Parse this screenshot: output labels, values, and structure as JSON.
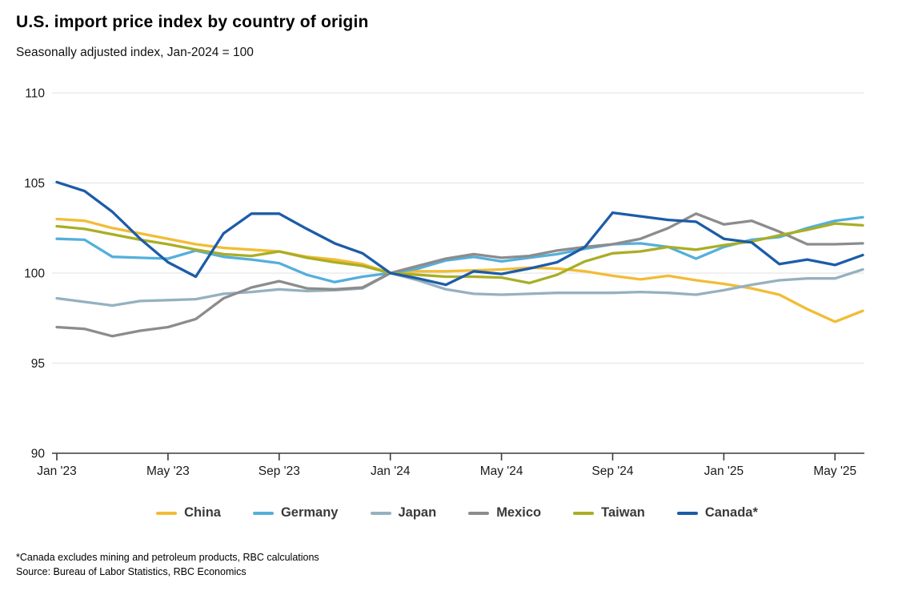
{
  "title": "U.S. import price index by country of origin",
  "subtitle": "Seasonally adjusted index, Jan-2024 = 100",
  "footnote1": "*Canada excludes mining and petroleum products, RBC calculations",
  "footnote2": "Source: Bureau of Labor Statistics, RBC Economics",
  "chart_data": {
    "type": "line",
    "title": "U.S. import price index by country of origin",
    "subtitle": "Seasonally adjusted index, Jan-2024 = 100",
    "ylim": [
      90,
      110
    ],
    "y_ticks": [
      110,
      105,
      100,
      95,
      90
    ],
    "grid": "horizontal-light, dark baseline at 90",
    "legend_position": "bottom",
    "axis_color": "#3c3c3c",
    "grid_color": "#e7e7e7",
    "x": [
      "Jan '23",
      "Feb '23",
      "Mar '23",
      "Apr '23",
      "May '23",
      "Jun '23",
      "Jul '23",
      "Aug '23",
      "Sep '23",
      "Oct '23",
      "Nov '23",
      "Dec '23",
      "Jan '24",
      "Feb '24",
      "Mar '24",
      "Apr '24",
      "May '24",
      "Jun '24",
      "Jul '24",
      "Aug '24",
      "Sep '24",
      "Oct '24",
      "Nov '24",
      "Dec '24",
      "Jan '25",
      "Feb '25",
      "Mar '25",
      "Apr '25",
      "May '25",
      "Jun '25"
    ],
    "x_tick_indices": [
      0,
      4,
      8,
      12,
      16,
      20,
      24,
      28
    ],
    "x_tick_labels": [
      "Jan '23",
      "May '23",
      "Sep '23",
      "Jan '24",
      "May '24",
      "Sep '24",
      "Jan '25",
      "May '25"
    ],
    "series": [
      {
        "name": "China",
        "color": "#F2BC35",
        "values": [
          103.0,
          102.9,
          102.5,
          102.2,
          101.9,
          101.6,
          101.4,
          101.3,
          101.2,
          100.9,
          100.75,
          100.5,
          100.0,
          100.1,
          100.1,
          100.15,
          100.2,
          100.3,
          100.25,
          100.1,
          99.85,
          99.65,
          99.85,
          99.6,
          99.4,
          99.15,
          98.8,
          98.0,
          97.3,
          97.9
        ]
      },
      {
        "name": "Germany",
        "color": "#54AFDB",
        "values": [
          101.9,
          101.85,
          100.9,
          100.85,
          100.8,
          101.25,
          100.9,
          100.75,
          100.55,
          99.9,
          99.5,
          99.8,
          100.0,
          100.25,
          100.7,
          100.9,
          100.65,
          100.85,
          101.05,
          101.35,
          101.6,
          101.65,
          101.45,
          100.8,
          101.45,
          101.85,
          102.0,
          102.5,
          102.9,
          103.1
        ]
      },
      {
        "name": "Japan",
        "color": "#95B1C0",
        "values": [
          98.6,
          98.4,
          98.2,
          98.45,
          98.5,
          98.55,
          98.85,
          98.95,
          99.1,
          99.0,
          99.05,
          99.15,
          100.0,
          99.6,
          99.1,
          98.85,
          98.8,
          98.85,
          98.9,
          98.9,
          98.9,
          98.95,
          98.9,
          98.8,
          99.05,
          99.35,
          99.6,
          99.7,
          99.7,
          100.2
        ]
      },
      {
        "name": "Mexico",
        "color": "#8C8C8C",
        "values": [
          97.0,
          96.9,
          96.5,
          96.8,
          97.0,
          97.45,
          98.6,
          99.2,
          99.55,
          99.15,
          99.1,
          99.2,
          100.0,
          100.4,
          100.8,
          101.05,
          100.85,
          100.95,
          101.25,
          101.45,
          101.6,
          101.9,
          102.5,
          103.3,
          102.7,
          102.9,
          102.3,
          101.6,
          101.6,
          101.65
        ]
      },
      {
        "name": "Taiwan",
        "color": "#A9AE25",
        "values": [
          102.6,
          102.45,
          102.15,
          101.85,
          101.6,
          101.3,
          101.05,
          100.95,
          101.2,
          100.85,
          100.6,
          100.4,
          100.0,
          99.9,
          99.8,
          99.8,
          99.75,
          99.45,
          99.9,
          100.65,
          101.1,
          101.2,
          101.45,
          101.3,
          101.55,
          101.75,
          102.1,
          102.4,
          102.75,
          102.65
        ]
      },
      {
        "name": "Canada*",
        "color": "#1C5CA8",
        "values": [
          105.05,
          104.55,
          103.4,
          101.9,
          100.6,
          99.8,
          102.2,
          103.3,
          103.3,
          102.45,
          101.65,
          101.1,
          100.0,
          99.7,
          99.35,
          100.1,
          99.95,
          100.25,
          100.6,
          101.45,
          103.35,
          103.15,
          102.95,
          102.85,
          101.9,
          101.7,
          100.5,
          100.75,
          100.45,
          101.0
        ]
      }
    ]
  }
}
